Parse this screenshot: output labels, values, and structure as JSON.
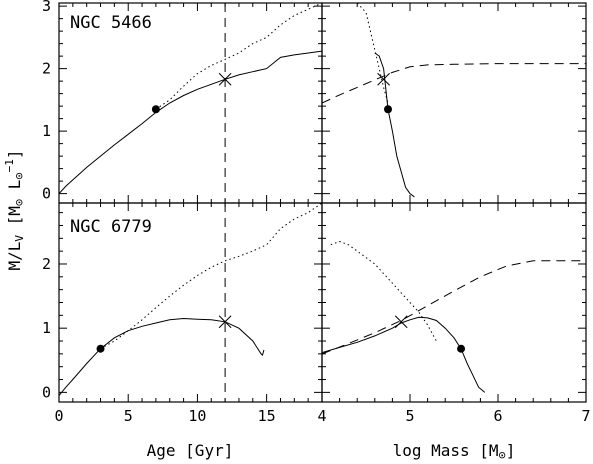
{
  "chart_data": [
    {
      "type": "line",
      "id": "age-5466",
      "panel_label": "NGC 5466",
      "xlim": [
        0,
        19
      ],
      "ylim": [
        -0.15,
        3.05
      ],
      "series": [
        {
          "style": "dotted",
          "x": [
            7.0,
            8.0,
            9.0,
            10.0,
            11.0,
            12.0,
            13.0,
            14.0,
            15.0,
            16.0,
            17.0,
            18.0,
            19.0
          ],
          "y": [
            1.35,
            1.5,
            1.72,
            1.92,
            2.05,
            2.15,
            2.25,
            2.4,
            2.5,
            2.7,
            2.85,
            2.95,
            3.05
          ]
        },
        {
          "style": "solid",
          "x": [
            0.0,
            0.5,
            1.0,
            1.5,
            2.0,
            3.0,
            4.0,
            5.0,
            6.0,
            7.0,
            8.0,
            9.0,
            10.0,
            11.0,
            12.0,
            13.0,
            14.0,
            15.0,
            16.0,
            17.0,
            18.0,
            19.0
          ],
          "y": [
            0.0,
            0.12,
            0.22,
            0.32,
            0.42,
            0.6,
            0.78,
            0.95,
            1.12,
            1.3,
            1.45,
            1.57,
            1.67,
            1.75,
            1.83,
            1.9,
            1.95,
            2.0,
            2.18,
            2.22,
            2.25,
            2.28
          ]
        }
      ],
      "vline": {
        "x": 12,
        "style": "dashed"
      },
      "markers": [
        {
          "type": "dot",
          "x": 7.0,
          "y": 1.35
        },
        {
          "type": "cross",
          "x": 12.0,
          "y": 1.83
        }
      ]
    },
    {
      "type": "line",
      "id": "mass-5466",
      "xlim": [
        4,
        7
      ],
      "ylim": [
        -0.15,
        3.05
      ],
      "series": [
        {
          "style": "dotted",
          "x": [
            4.4,
            4.5,
            4.55,
            4.6,
            4.65,
            4.7,
            4.75
          ],
          "y": [
            3.05,
            2.9,
            2.6,
            2.3,
            2.0,
            1.7,
            1.45
          ]
        },
        {
          "style": "solid",
          "x": [
            4.6,
            4.65,
            4.7,
            4.75,
            4.8,
            4.85,
            4.9,
            4.95,
            5.0,
            5.05
          ],
          "y": [
            2.25,
            2.2,
            2.0,
            1.35,
            1.0,
            0.6,
            0.35,
            0.1,
            0.0,
            -0.05
          ]
        },
        {
          "style": "dashed",
          "x": [
            4.0,
            4.2,
            4.4,
            4.6,
            4.8,
            5.0,
            5.2,
            5.5,
            6.0,
            6.5,
            7.0
          ],
          "y": [
            1.45,
            1.58,
            1.7,
            1.82,
            1.94,
            2.03,
            2.06,
            2.07,
            2.08,
            2.08,
            2.08
          ]
        }
      ],
      "markers": [
        {
          "type": "dot",
          "x": 4.75,
          "y": 1.35
        },
        {
          "type": "cross",
          "x": 4.7,
          "y": 1.83
        }
      ]
    },
    {
      "type": "line",
      "id": "age-6779",
      "panel_label": "NGC 6779",
      "xlim": [
        0,
        19
      ],
      "ylim": [
        -0.15,
        2.95
      ],
      "series": [
        {
          "style": "dotted",
          "x": [
            3.0,
            4.0,
            5.0,
            6.0,
            7.0,
            8.0,
            9.0,
            10.0,
            11.0,
            12.0,
            13.0,
            14.0,
            15.0,
            16.0,
            17.0,
            18.0,
            19.0
          ],
          "y": [
            0.68,
            0.8,
            0.96,
            1.13,
            1.32,
            1.5,
            1.67,
            1.82,
            1.95,
            2.05,
            2.12,
            2.2,
            2.3,
            2.55,
            2.7,
            2.8,
            2.95
          ]
        },
        {
          "style": "solid",
          "x": [
            0.0,
            0.5,
            1.0,
            2.0,
            3.0,
            4.0,
            5.0,
            6.0,
            7.0,
            8.0,
            9.0,
            10.0,
            11.0,
            12.0,
            13.0,
            14.0,
            14.6,
            14.7,
            14.8
          ],
          "y": [
            -0.05,
            0.08,
            0.2,
            0.45,
            0.68,
            0.85,
            0.96,
            1.03,
            1.08,
            1.13,
            1.15,
            1.14,
            1.13,
            1.1,
            1.0,
            0.8,
            0.6,
            0.58,
            0.66
          ]
        }
      ],
      "vline": {
        "x": 12,
        "style": "dashed"
      },
      "markers": [
        {
          "type": "dot",
          "x": 3.0,
          "y": 0.68
        },
        {
          "type": "cross",
          "x": 12.0,
          "y": 1.1
        }
      ]
    },
    {
      "type": "line",
      "id": "mass-6779",
      "xlim": [
        4,
        7
      ],
      "ylim": [
        -0.15,
        2.95
      ],
      "series": [
        {
          "style": "dotted",
          "x": [
            4.1,
            4.2,
            4.3,
            4.4,
            4.5,
            4.6,
            4.7,
            4.8,
            4.9,
            5.0,
            5.1,
            5.2,
            5.3
          ],
          "y": [
            2.3,
            2.35,
            2.3,
            2.2,
            2.1,
            2.0,
            1.85,
            1.7,
            1.55,
            1.4,
            1.25,
            1.05,
            0.8
          ]
        },
        {
          "style": "solid",
          "x": [
            4.0,
            4.2,
            4.4,
            4.6,
            4.8,
            4.9,
            5.0,
            5.1,
            5.2,
            5.3,
            5.4,
            5.5,
            5.58,
            5.65,
            5.72,
            5.78,
            5.85
          ],
          "y": [
            0.62,
            0.7,
            0.78,
            0.88,
            1.0,
            1.08,
            1.13,
            1.17,
            1.16,
            1.12,
            1.0,
            0.85,
            0.68,
            0.45,
            0.25,
            0.08,
            0.0
          ]
        },
        {
          "style": "dashed",
          "x": [
            4.0,
            4.3,
            4.6,
            4.9,
            5.2,
            5.5,
            5.8,
            6.1,
            6.4,
            6.7,
            7.0
          ],
          "y": [
            0.6,
            0.76,
            0.93,
            1.12,
            1.35,
            1.58,
            1.8,
            1.97,
            2.05,
            2.05,
            2.05
          ]
        }
      ],
      "markers": [
        {
          "type": "dot",
          "x": 5.58,
          "y": 0.68
        },
        {
          "type": "cross",
          "x": 4.9,
          "y": 1.1
        }
      ]
    }
  ],
  "axes": {
    "ylabel": "M/L",
    "ylabel_sub": "V",
    "ylabel_units_open": " [M",
    "ylabel_sun": "⊙",
    "ylabel_units_mid": " L",
    "ylabel_sun2": "⊙",
    "ylabel_sup": "−1",
    "ylabel_close": "]",
    "xlabel_left": "Age [Gyr]",
    "xlabel_right_main": "log Mass [M",
    "xlabel_right_sun": "⊙",
    "xlabel_right_close": "]",
    "age_ticks": [
      "0",
      "5",
      "10",
      "15"
    ],
    "mass_ticks": [
      "4",
      "5",
      "6",
      "7"
    ],
    "y_ticks_top": [
      "0",
      "1",
      "2",
      "3"
    ],
    "y_ticks_bottom": [
      "0",
      "1",
      "2"
    ]
  }
}
